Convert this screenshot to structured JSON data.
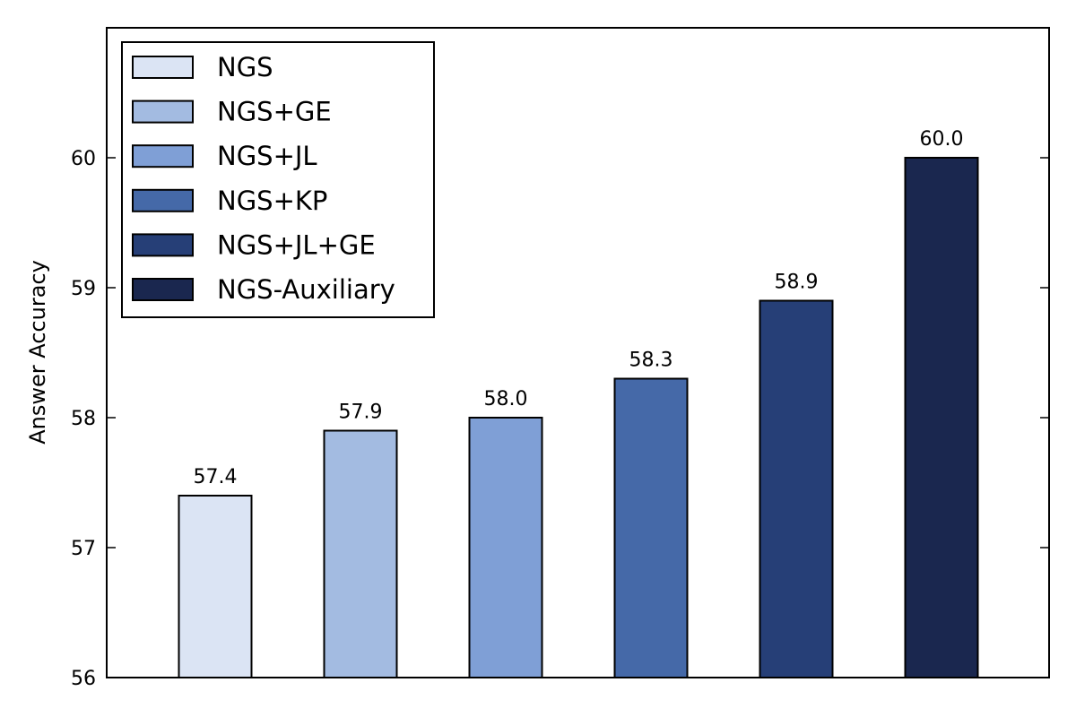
{
  "chart_data": {
    "type": "bar",
    "title": "",
    "xlabel": "",
    "ylabel": "Answer Accuracy",
    "ylim": [
      56,
      61
    ],
    "yticks": [
      56,
      57,
      58,
      59,
      60
    ],
    "grid": false,
    "legend_position": "top-left",
    "series": [
      {
        "name": "NGS",
        "value": 57.4,
        "label": "57.4",
        "color": "#dbe4f4"
      },
      {
        "name": "NGS+GE",
        "value": 57.9,
        "label": "57.9",
        "color": "#a3bbe1"
      },
      {
        "name": "NGS+JL",
        "value": 58.0,
        "label": "58.0",
        "color": "#7f9fd6"
      },
      {
        "name": "NGS+KP",
        "value": 58.3,
        "label": "58.3",
        "color": "#4569a8"
      },
      {
        "name": "NGS+JL+GE",
        "value": 58.9,
        "label": "58.9",
        "color": "#263f77"
      },
      {
        "name": "NGS-Auxiliary",
        "value": 60.0,
        "label": "60.0",
        "color": "#1a274f"
      }
    ]
  }
}
